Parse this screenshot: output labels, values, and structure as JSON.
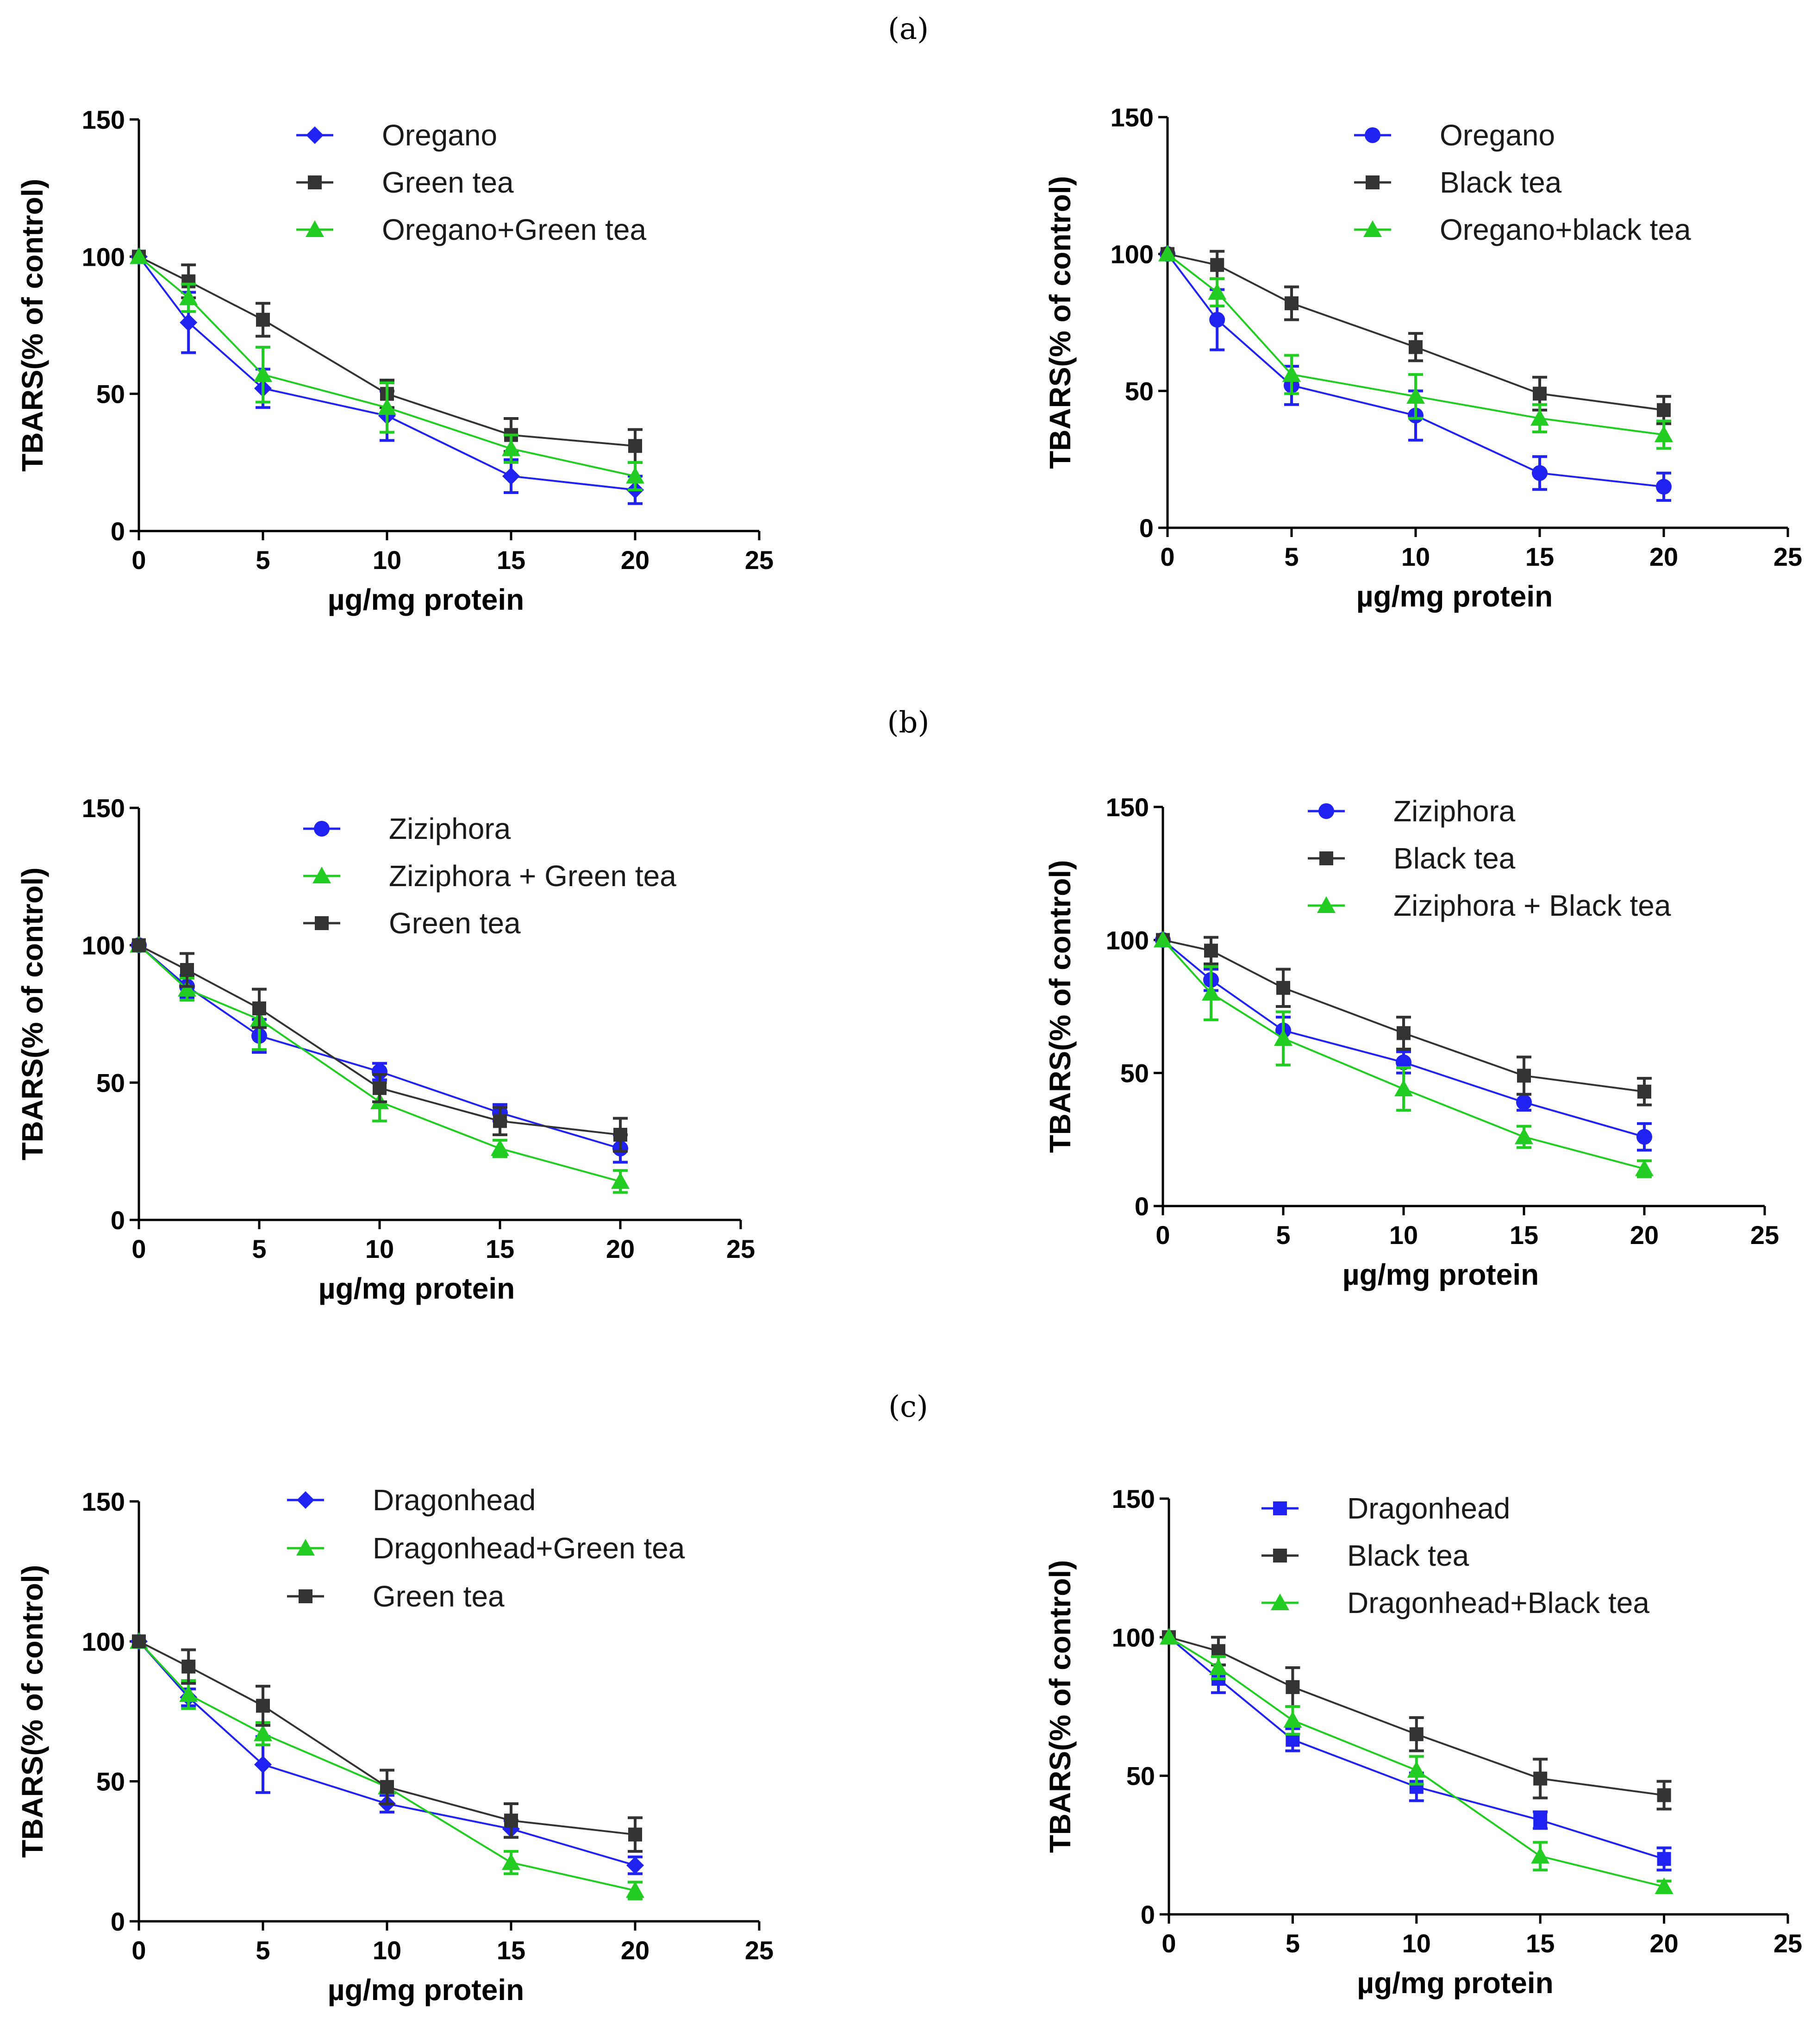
{
  "figure": {
    "panel_labels": [
      "(a)",
      "(b)",
      "(c)"
    ]
  },
  "colors": {
    "blue": "#1f22f0",
    "green": "#22cc22",
    "black": "#333333"
  },
  "chart_data": [
    {
      "type": "line",
      "panel": "(a)",
      "position": "left",
      "xlabel": "µg/mg protein",
      "ylabel": "TBARS(% of control)",
      "xlim": [
        0,
        25
      ],
      "ylim": [
        0,
        150
      ],
      "xticks": [
        0,
        5,
        10,
        15,
        20,
        25
      ],
      "yticks": [
        0,
        50,
        100,
        150
      ],
      "legend_position": "top-center",
      "series": [
        {
          "name": "Oregano",
          "color": "blue",
          "marker": "diamond",
          "x": [
            0,
            2,
            5,
            10,
            15,
            20
          ],
          "y": [
            100,
            76,
            52,
            42,
            20,
            15
          ],
          "err": [
            0,
            11,
            7,
            9,
            6,
            5
          ]
        },
        {
          "name": "Green tea",
          "color": "black",
          "marker": "square",
          "x": [
            0,
            2,
            5,
            10,
            15,
            20
          ],
          "y": [
            100,
            91,
            77,
            50,
            35,
            31
          ],
          "err": [
            0,
            6,
            6,
            5,
            6,
            6
          ]
        },
        {
          "name": "Oregano+Green tea",
          "color": "green",
          "marker": "triangle",
          "x": [
            0,
            2,
            5,
            10,
            15,
            20
          ],
          "y": [
            100,
            85,
            57,
            45,
            30,
            20
          ],
          "err": [
            0,
            5,
            10,
            9,
            5,
            5
          ]
        }
      ]
    },
    {
      "type": "line",
      "panel": "(a)",
      "position": "right",
      "xlabel": "µg/mg protein",
      "ylabel": "TBARS(% of control)",
      "xlim": [
        0,
        25
      ],
      "ylim": [
        0,
        150
      ],
      "xticks": [
        0,
        5,
        10,
        15,
        20,
        25
      ],
      "yticks": [
        0,
        50,
        100,
        150
      ],
      "legend_position": "top-center",
      "series": [
        {
          "name": "Oregano",
          "color": "blue",
          "marker": "circle",
          "x": [
            0,
            2,
            5,
            10,
            15,
            20
          ],
          "y": [
            100,
            76,
            52,
            41,
            20,
            15
          ],
          "err": [
            0,
            11,
            7,
            9,
            6,
            5
          ]
        },
        {
          "name": "Black tea",
          "color": "black",
          "marker": "square",
          "x": [
            0,
            2,
            5,
            10,
            15,
            20
          ],
          "y": [
            100,
            96,
            82,
            66,
            49,
            43
          ],
          "err": [
            0,
            5,
            6,
            5,
            6,
            5
          ]
        },
        {
          "name": "Oregano+black tea",
          "color": "green",
          "marker": "triangle",
          "x": [
            0,
            2,
            5,
            10,
            15,
            20
          ],
          "y": [
            100,
            86,
            56,
            48,
            40,
            34
          ],
          "err": [
            0,
            5,
            7,
            8,
            5,
            5
          ]
        }
      ]
    },
    {
      "type": "line",
      "panel": "(b)",
      "position": "left",
      "xlabel": "µg/mg protein",
      "ylabel": "TBARS(% of control)",
      "xlim": [
        0,
        25
      ],
      "ylim": [
        0,
        150
      ],
      "xticks": [
        0,
        5,
        10,
        15,
        20,
        25
      ],
      "yticks": [
        0,
        50,
        100,
        150
      ],
      "legend_position": "top-center",
      "series": [
        {
          "name": "Ziziphora",
          "color": "blue",
          "marker": "circle",
          "x": [
            0,
            2,
            5,
            10,
            15,
            20
          ],
          "y": [
            100,
            85,
            67,
            54,
            39,
            26
          ],
          "err": [
            0,
            4,
            6,
            3,
            3,
            5
          ]
        },
        {
          "name": "Ziziphora + Green tea",
          "color": "green",
          "marker": "triangle",
          "x": [
            0,
            2,
            5,
            10,
            15,
            20
          ],
          "y": [
            100,
            84,
            73,
            43,
            26,
            14
          ],
          "err": [
            0,
            4,
            11,
            7,
            3,
            4
          ]
        },
        {
          "name": "Green tea",
          "color": "black",
          "marker": "square",
          "x": [
            0,
            2,
            5,
            10,
            15,
            20
          ],
          "y": [
            100,
            91,
            77,
            48,
            36,
            31
          ],
          "err": [
            0,
            6,
            7,
            5,
            5,
            6
          ]
        }
      ]
    },
    {
      "type": "line",
      "panel": "(b)",
      "position": "right",
      "xlabel": "µg/mg protein",
      "ylabel": "TBARS(% of control)",
      "xlim": [
        0,
        25
      ],
      "ylim": [
        0,
        150
      ],
      "xticks": [
        0,
        5,
        10,
        15,
        20,
        25
      ],
      "yticks": [
        0,
        50,
        100,
        150
      ],
      "legend_position": "top-center",
      "series": [
        {
          "name": "Ziziphora",
          "color": "blue",
          "marker": "circle",
          "x": [
            0,
            2,
            5,
            10,
            15,
            20
          ],
          "y": [
            100,
            85,
            66,
            54,
            39,
            26
          ],
          "err": [
            0,
            4,
            5,
            4,
            3,
            5
          ]
        },
        {
          "name": "Black tea",
          "color": "black",
          "marker": "square",
          "x": [
            0,
            2,
            5,
            10,
            15,
            20
          ],
          "y": [
            100,
            96,
            82,
            65,
            49,
            43
          ],
          "err": [
            0,
            5,
            7,
            6,
            7,
            5
          ]
        },
        {
          "name": "Ziziphora + Black tea",
          "color": "green",
          "marker": "triangle",
          "x": [
            0,
            2,
            5,
            10,
            15,
            20
          ],
          "y": [
            100,
            80,
            63,
            44,
            26,
            14
          ],
          "err": [
            0,
            10,
            10,
            8,
            4,
            3
          ]
        }
      ]
    },
    {
      "type": "line",
      "panel": "(c)",
      "position": "left",
      "xlabel": "µg/mg protein",
      "ylabel": "TBARS(% of control)",
      "xlim": [
        0,
        25
      ],
      "ylim": [
        0,
        150
      ],
      "xticks": [
        0,
        5,
        10,
        15,
        20,
        25
      ],
      "yticks": [
        0,
        50,
        100,
        150
      ],
      "legend_position": "top-center",
      "series": [
        {
          "name": "Dragonhead",
          "color": "blue",
          "marker": "diamond",
          "x": [
            0,
            2,
            5,
            10,
            15,
            20
          ],
          "y": [
            100,
            80,
            56,
            42,
            33,
            20
          ],
          "err": [
            0,
            3,
            10,
            3,
            3,
            3
          ]
        },
        {
          "name": "Dragonhead+Green tea",
          "color": "green",
          "marker": "triangle",
          "x": [
            0,
            2,
            5,
            10,
            15,
            20
          ],
          "y": [
            100,
            81,
            67,
            48,
            21,
            11
          ],
          "err": [
            0,
            5,
            4,
            6,
            4,
            3
          ]
        },
        {
          "name": "Green tea",
          "color": "black",
          "marker": "square",
          "x": [
            0,
            2,
            5,
            10,
            15,
            20
          ],
          "y": [
            100,
            91,
            77,
            48,
            36,
            31
          ],
          "err": [
            0,
            6,
            7,
            6,
            6,
            6
          ]
        }
      ]
    },
    {
      "type": "line",
      "panel": "(c)",
      "position": "right",
      "xlabel": "µg/mg protein",
      "ylabel": "TBARS(% of control)",
      "xlim": [
        0,
        25
      ],
      "ylim": [
        0,
        150
      ],
      "xticks": [
        0,
        5,
        10,
        15,
        20,
        25
      ],
      "yticks": [
        0,
        50,
        100,
        150
      ],
      "legend_position": "top-center",
      "series": [
        {
          "name": "Dragonhead",
          "color": "blue",
          "marker": "square",
          "x": [
            0,
            2,
            5,
            10,
            15,
            20
          ],
          "y": [
            100,
            85,
            63,
            46,
            34,
            20
          ],
          "err": [
            0,
            5,
            4,
            5,
            3,
            4
          ]
        },
        {
          "name": "Black tea",
          "color": "black",
          "marker": "square",
          "x": [
            0,
            2,
            5,
            10,
            15,
            20
          ],
          "y": [
            100,
            95,
            82,
            65,
            49,
            43
          ],
          "err": [
            0,
            5,
            7,
            6,
            7,
            5
          ]
        },
        {
          "name": "Dragonhead+Black tea",
          "color": "green",
          "marker": "triangle",
          "x": [
            0,
            2,
            5,
            10,
            15,
            20
          ],
          "y": [
            100,
            89,
            70,
            52,
            21,
            10
          ],
          "err": [
            0,
            4,
            5,
            5,
            5,
            2
          ]
        }
      ]
    }
  ]
}
